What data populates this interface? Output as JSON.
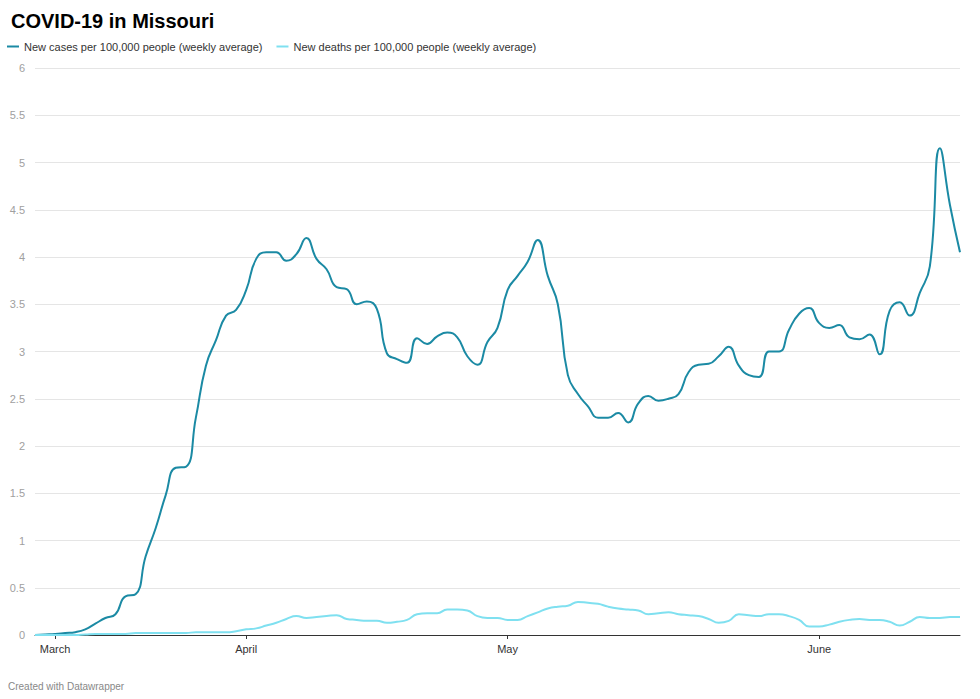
{
  "chart_data": {
    "type": "line",
    "title": "COVID-19 in Missouri",
    "source": "Created with Datawrapper",
    "categories": [
      null,
      null,
      "March",
      null,
      null,
      null,
      null,
      null,
      null,
      null,
      null,
      null,
      null,
      null,
      null,
      null,
      null,
      null,
      null,
      null,
      null,
      "April",
      null,
      null,
      null,
      null,
      null,
      null,
      null,
      null,
      null,
      null,
      null,
      null,
      null,
      null,
      null,
      null,
      null,
      null,
      null,
      null,
      null,
      null,
      null,
      null,
      null,
      "May",
      null,
      null,
      null,
      null,
      null,
      null,
      null,
      null,
      null,
      null,
      null,
      null,
      null,
      null,
      null,
      null,
      null,
      null,
      null,
      null,
      null,
      null,
      null,
      null,
      null,
      null,
      null,
      null,
      null,
      null,
      "June",
      null,
      null,
      null,
      null,
      null,
      null,
      null,
      null,
      null,
      null,
      null,
      null,
      null,
      null
    ],
    "series": [
      {
        "name": "New cases per 100,000 people (weekly average)",
        "color": "#1b8aa4",
        "values": [
          0,
          0.005,
          0.01,
          0.02,
          0.03,
          0.06,
          0.12,
          0.18,
          0.22,
          0.41,
          0.43,
          0.83,
          1.13,
          1.48,
          1.77,
          1.78,
          2.3,
          2.85,
          3.12,
          3.38,
          3.44,
          3.65,
          3.98,
          4.05,
          4.05,
          3.96,
          4.03,
          4.2,
          3.98,
          3.87,
          3.68,
          3.66,
          3.5,
          3.53,
          3.45,
          2.98,
          2.92,
          2.88,
          3.14,
          3.08,
          3.16,
          3.2,
          3.15,
          2.95,
          2.86,
          3.1,
          3.25,
          3.65,
          3.8,
          3.95,
          4.18,
          3.8,
          3.5,
          2.75,
          2.55,
          2.42,
          2.3,
          2.3,
          2.35,
          2.25,
          2.45,
          2.53,
          2.48,
          2.5,
          2.55,
          2.78,
          2.86,
          2.87,
          2.95,
          3.05,
          2.85,
          2.75,
          2.73,
          3.0,
          3.0,
          3.23,
          3.4,
          3.46,
          3.3,
          3.25,
          3.28,
          3.15,
          3.13,
          3.18,
          2.97,
          3.43,
          3.52,
          3.38,
          3.62,
          3.9,
          5.15,
          4.55,
          4.05
        ]
      },
      {
        "name": "New deaths per 100,000 people (weekly average)",
        "color": "#7fe0f0",
        "values": [
          0,
          0,
          0,
          0,
          0,
          0.005,
          0.01,
          0.01,
          0.01,
          0.01,
          0.02,
          0.02,
          0.02,
          0.02,
          0.02,
          0.02,
          0.03,
          0.03,
          0.03,
          0.03,
          0.04,
          0.06,
          0.07,
          0.1,
          0.13,
          0.17,
          0.2,
          0.18,
          0.19,
          0.2,
          0.21,
          0.17,
          0.16,
          0.15,
          0.15,
          0.13,
          0.14,
          0.16,
          0.22,
          0.23,
          0.23,
          0.27,
          0.27,
          0.26,
          0.2,
          0.18,
          0.18,
          0.16,
          0.16,
          0.2,
          0.24,
          0.28,
          0.3,
          0.31,
          0.35,
          0.34,
          0.33,
          0.3,
          0.28,
          0.27,
          0.26,
          0.22,
          0.23,
          0.24,
          0.22,
          0.21,
          0.2,
          0.17,
          0.13,
          0.15,
          0.22,
          0.21,
          0.2,
          0.22,
          0.22,
          0.2,
          0.16,
          0.09,
          0.09,
          0.11,
          0.14,
          0.16,
          0.17,
          0.16,
          0.16,
          0.14,
          0.1,
          0.14,
          0.19,
          0.18,
          0.18,
          0.19,
          0.19
        ]
      }
    ],
    "ylim": [
      0,
      6
    ],
    "yticks": [
      0,
      0.5,
      1,
      1.5,
      2,
      2.5,
      3,
      3.5,
      4,
      4.5,
      5,
      5.5,
      6
    ],
    "grid": true,
    "legend": "top-left"
  }
}
